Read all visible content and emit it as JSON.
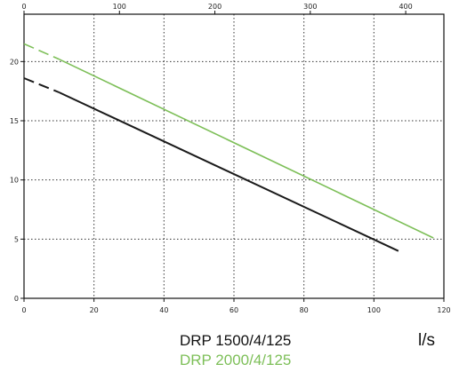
{
  "chart_data": {
    "type": "line",
    "x_bottom": {
      "ticks": [
        0,
        20,
        40,
        60,
        80,
        100,
        120
      ],
      "range": [
        0,
        120
      ],
      "unit": "l/s"
    },
    "x_top": {
      "ticks": [
        0,
        100,
        200,
        300,
        400
      ]
    },
    "y": {
      "ticks": [
        0,
        5,
        10,
        15,
        20
      ],
      "range": [
        0,
        24
      ]
    },
    "grid": true,
    "series": [
      {
        "name": "DRP 1500/4/125",
        "color": "#1a1a1a",
        "dashed_segment": [
          [
            0,
            18.6
          ],
          [
            10,
            17.4
          ]
        ],
        "solid_segment": [
          [
            10,
            17.4
          ],
          [
            107,
            4.0
          ]
        ]
      },
      {
        "name": "DRP 2000/4/125",
        "color": "#7dbf58",
        "dashed_segment": [
          [
            0,
            21.5
          ],
          [
            10,
            20.2
          ]
        ],
        "solid_segment": [
          [
            10,
            20.2
          ],
          [
            117,
            5.1
          ]
        ]
      }
    ]
  },
  "legend": {
    "line1": "DRP 1500/4/125",
    "line2": "DRP 2000/4/125"
  },
  "unit_label": "l/s"
}
